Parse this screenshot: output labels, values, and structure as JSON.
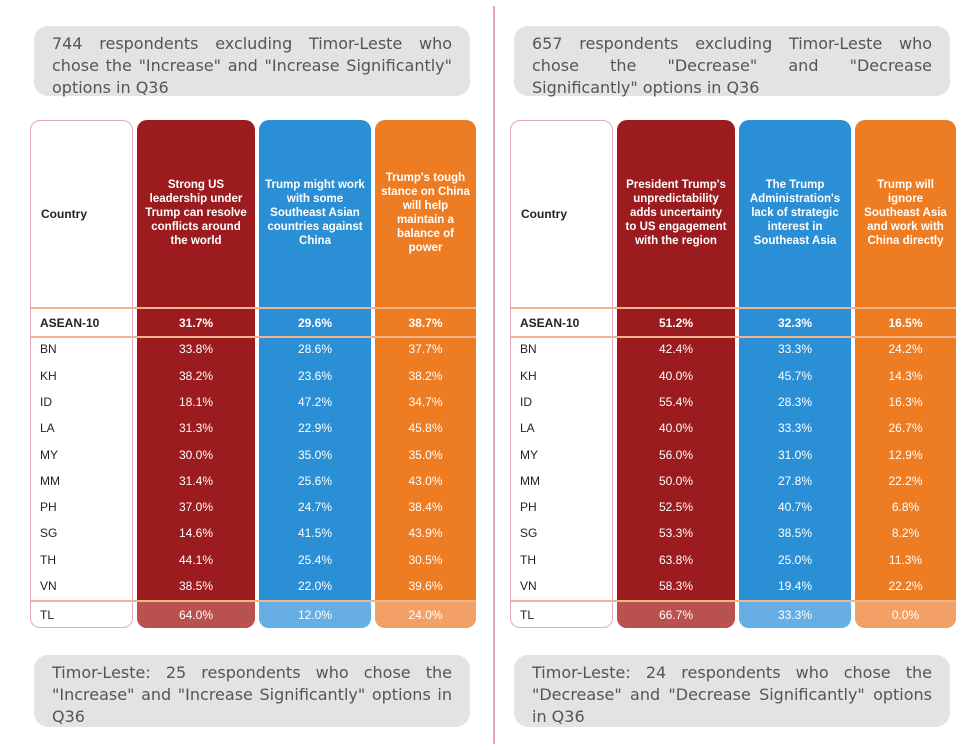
{
  "colors": {
    "col1": "#9b1b1f",
    "col2": "#2b8fd6",
    "col3": "#ee7c23",
    "col1_tl": "#b9524f",
    "col2_tl": "#66aee4",
    "col3_tl": "#f3a067",
    "divider": "#e8a6bd",
    "note_bg": "#e3e3e3"
  },
  "chart_data": [
    {
      "type": "table",
      "note_top": "744 respondents excluding Timor-Leste who chose the \"Increase\" and \"Increase Significantly\" options in Q36",
      "note_bottom": "Timor-Leste: 25 respondents who chose the \"Increase\" and \"Increase Significantly\" options in Q36",
      "country_header": "Country",
      "columns": [
        "Strong US leadership under Trump can resolve conflicts around the world",
        "Trump might work with some Southeast Asian countries against China",
        "Trump's tough stance on China will help maintain a balance of power"
      ],
      "rows": [
        {
          "country": "ASEAN-10",
          "values": [
            "31.7%",
            "29.6%",
            "38.7%"
          ]
        },
        {
          "country": "BN",
          "values": [
            "33.8%",
            "28.6%",
            "37.7%"
          ]
        },
        {
          "country": "KH",
          "values": [
            "38.2%",
            "23.6%",
            "38.2%"
          ]
        },
        {
          "country": "ID",
          "values": [
            "18.1%",
            "47.2%",
            "34.7%"
          ]
        },
        {
          "country": "LA",
          "values": [
            "31.3%",
            "22.9%",
            "45.8%"
          ]
        },
        {
          "country": "MY",
          "values": [
            "30.0%",
            "35.0%",
            "35.0%"
          ]
        },
        {
          "country": "MM",
          "values": [
            "31.4%",
            "25.6%",
            "43.0%"
          ]
        },
        {
          "country": "PH",
          "values": [
            "37.0%",
            "24.7%",
            "38.4%"
          ]
        },
        {
          "country": "SG",
          "values": [
            "14.6%",
            "41.5%",
            "43.9%"
          ]
        },
        {
          "country": "TH",
          "values": [
            "44.1%",
            "25.4%",
            "30.5%"
          ]
        },
        {
          "country": "VN",
          "values": [
            "38.5%",
            "22.0%",
            "39.6%"
          ]
        },
        {
          "country": "TL",
          "values": [
            "64.0%",
            "12.0%",
            "24.0%"
          ]
        }
      ]
    },
    {
      "type": "table",
      "note_top": "657 respondents excluding Timor-Leste who chose the \"Decrease\" and \"Decrease Significantly\" options in Q36",
      "note_bottom": "Timor-Leste: 24 respondents who chose the \"Decrease\" and \"Decrease Significantly\" options in Q36",
      "country_header": "Country",
      "columns": [
        "President Trump's unpredictability adds uncertainty to US engagement with the region",
        "The Trump Administration's lack of strategic interest in Southeast Asia",
        "Trump will ignore Southeast Asia and work with China directly"
      ],
      "rows": [
        {
          "country": "ASEAN-10",
          "values": [
            "51.2%",
            "32.3%",
            "16.5%"
          ]
        },
        {
          "country": "BN",
          "values": [
            "42.4%",
            "33.3%",
            "24.2%"
          ]
        },
        {
          "country": "KH",
          "values": [
            "40.0%",
            "45.7%",
            "14.3%"
          ]
        },
        {
          "country": "ID",
          "values": [
            "55.4%",
            "28.3%",
            "16.3%"
          ]
        },
        {
          "country": "LA",
          "values": [
            "40.0%",
            "33.3%",
            "26.7%"
          ]
        },
        {
          "country": "MY",
          "values": [
            "56.0%",
            "31.0%",
            "12.9%"
          ]
        },
        {
          "country": "MM",
          "values": [
            "50.0%",
            "27.8%",
            "22.2%"
          ]
        },
        {
          "country": "PH",
          "values": [
            "52.5%",
            "40.7%",
            "6.8%"
          ]
        },
        {
          "country": "SG",
          "values": [
            "53.3%",
            "38.5%",
            "8.2%"
          ]
        },
        {
          "country": "TH",
          "values": [
            "63.8%",
            "25.0%",
            "11.3%"
          ]
        },
        {
          "country": "VN",
          "values": [
            "58.3%",
            "19.4%",
            "22.2%"
          ]
        },
        {
          "country": "TL",
          "values": [
            "66.7%",
            "33.3%",
            "0.0%"
          ]
        }
      ]
    }
  ]
}
